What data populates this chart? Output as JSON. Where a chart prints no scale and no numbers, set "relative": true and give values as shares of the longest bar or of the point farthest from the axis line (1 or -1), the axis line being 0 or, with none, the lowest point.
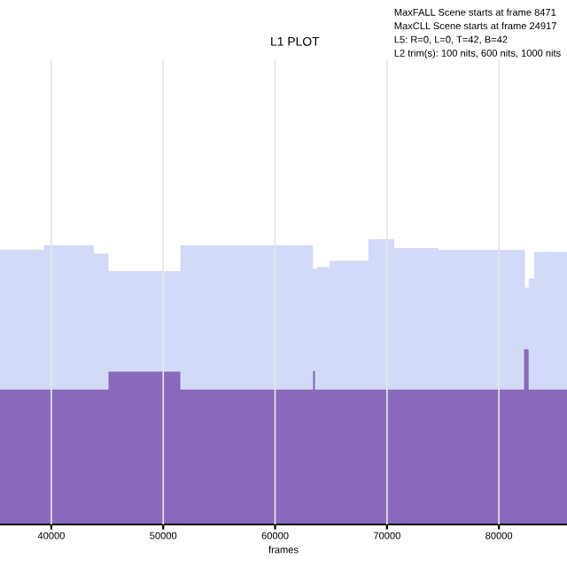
{
  "chart_data": {
    "type": "area",
    "title": "L1 PLOT",
    "xlabel": "frames",
    "relative": true,
    "annotations": [
      "MaxFALL Scene starts at frame 8471",
      "MaxCLL Scene starts at frame 24917",
      "L5: R=0, L=0, T=42, B=42",
      "L2 trim(s): 100 nits, 600 nits, 1000 nits"
    ],
    "xlim": [
      34400,
      87100
    ],
    "xticks": [
      40000,
      50000,
      60000,
      70000,
      80000
    ],
    "grid": "x",
    "legend": false,
    "series": [
      {
        "color": "#a7b5ef",
        "x": [
          34600,
          39340,
          43790,
          45110,
          51530,
          63390,
          63720,
          64870,
          68330,
          70640,
          74590,
          82330,
          82660,
          83150,
          86900
        ],
        "values": [
          0.964,
          0.979,
          0.95,
          0.888,
          0.979,
          0.896,
          0.902,
          0.925,
          1.0,
          0.969,
          0.963,
          0.831,
          0.863,
          0.956,
          0.956
        ]
      },
      {
        "color": "#7a55b0",
        "x": [
          34600,
          45110,
          51530,
          63390,
          63560,
          82250,
          82660,
          86900
        ],
        "values": [
          0.473,
          0.536,
          0.473,
          0.538,
          0.473,
          0.614,
          0.473,
          0.473
        ]
      }
    ]
  }
}
